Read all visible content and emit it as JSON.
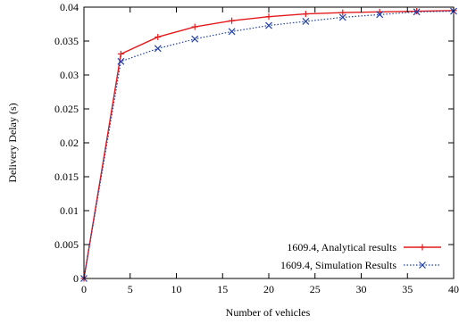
{
  "chart_data": {
    "type": "line",
    "xlabel": "Number of vehicles",
    "ylabel": "Delivery Delay (s)",
    "xlim": [
      0,
      40
    ],
    "ylim": [
      0,
      0.04
    ],
    "x_ticks": [
      "0",
      "5",
      "10",
      "15",
      "20",
      "25",
      "30",
      "35",
      "40"
    ],
    "y_ticks": [
      "0",
      "0.005",
      "0.01",
      "0.015",
      "0.02",
      "0.025",
      "0.03",
      "0.035",
      "0.04"
    ],
    "grid": false,
    "legend_position": "bottom-right",
    "series": [
      {
        "name": "1609.4, Analytical results",
        "color": "#e41a1c",
        "line_style": "solid",
        "marker": "plus",
        "x": [
          0,
          4,
          8,
          12,
          16,
          20,
          24,
          28,
          32,
          36,
          40
        ],
        "y": [
          0,
          0.0331,
          0.0356,
          0.0371,
          0.038,
          0.0386,
          0.039,
          0.0392,
          0.0393,
          0.0394,
          0.0395
        ]
      },
      {
        "name": "1609.4, Simulation Results",
        "color": "#1f3fa8",
        "line_style": "dotted",
        "marker": "x",
        "x": [
          0,
          4,
          8,
          12,
          16,
          20,
          24,
          28,
          32,
          36,
          40
        ],
        "y": [
          0,
          0.032,
          0.0339,
          0.0353,
          0.0364,
          0.0373,
          0.0379,
          0.0385,
          0.0389,
          0.0393,
          0.0394
        ]
      }
    ]
  }
}
